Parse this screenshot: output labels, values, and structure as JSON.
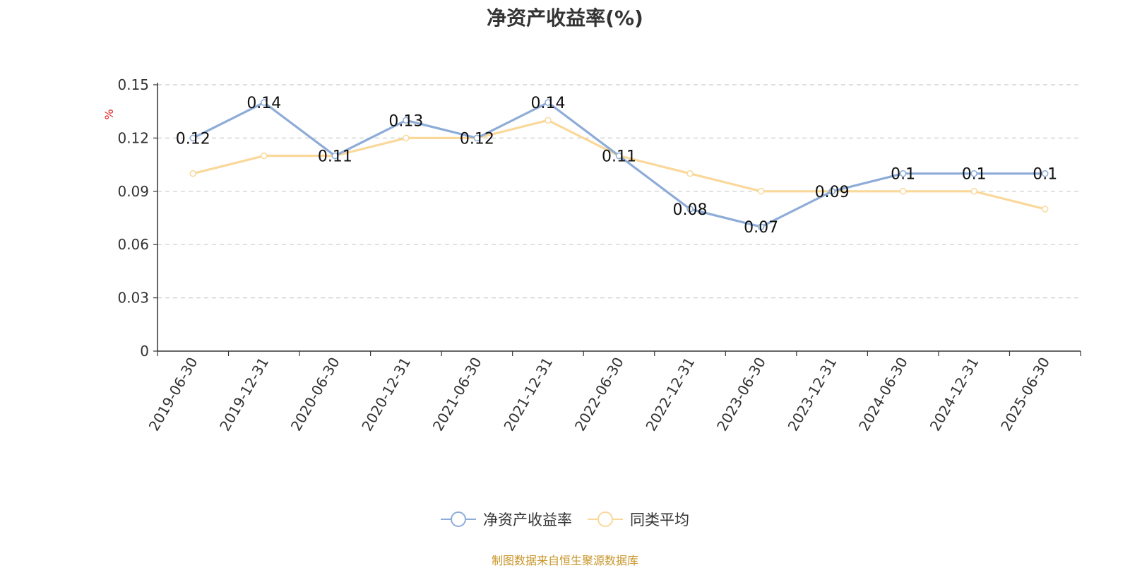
{
  "chart_data": {
    "type": "line",
    "title": "净资产收益率(%)",
    "ylabel": "%",
    "ylim": [
      0,
      0.15
    ],
    "yticks": [
      0,
      0.03,
      0.06,
      0.09,
      0.12,
      0.15
    ],
    "ytick_labels": [
      "0",
      "0.03",
      "0.06",
      "0.09",
      "0.12",
      "0.15"
    ],
    "grid": true,
    "legend_position": "bottom",
    "categories": [
      "2019-06-30",
      "2019-12-31",
      "2020-06-30",
      "2020-12-31",
      "2021-06-30",
      "2021-12-31",
      "2022-06-30",
      "2022-12-31",
      "2023-06-30",
      "2023-12-31",
      "2024-06-30",
      "2024-12-31",
      "2025-06-30"
    ],
    "series": [
      {
        "name": "净资产收益率",
        "color": "#8eacd8",
        "values": [
          0.12,
          0.14,
          0.11,
          0.13,
          0.12,
          0.14,
          0.11,
          0.08,
          0.07,
          0.09,
          0.1,
          0.1,
          0.1
        ],
        "labels": [
          "0.12",
          "0.14",
          "0.11",
          "0.13",
          "0.12",
          "0.14",
          "0.11",
          "0.08",
          "0.07",
          "0.09",
          "0.1",
          "0.1",
          "0.1"
        ]
      },
      {
        "name": "同类平均",
        "color": "#f9d89a",
        "values": [
          0.1,
          0.11,
          0.11,
          0.12,
          0.12,
          0.13,
          0.11,
          0.1,
          0.09,
          0.09,
          0.09,
          0.09,
          0.08
        ]
      }
    ]
  },
  "source_text": "制图数据来自恒生聚源数据库"
}
